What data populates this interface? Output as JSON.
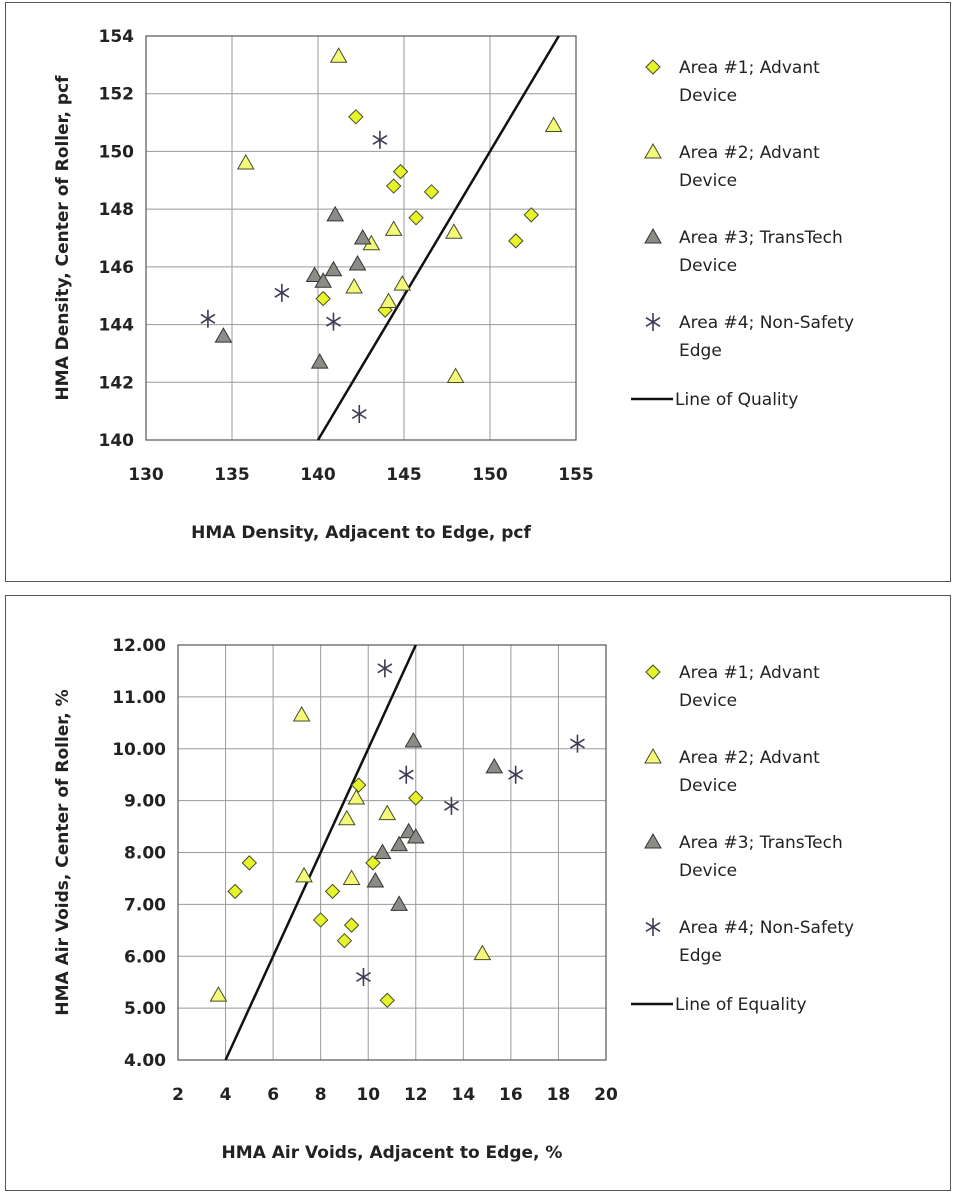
{
  "colors": {
    "area1": "#e6f52a",
    "area2": "#f3fa78",
    "area3": "#8c8c86",
    "area4": "#3c3c54",
    "line": "#111111"
  },
  "chart_data": [
    {
      "type": "scatter",
      "xlabel": "HMA Density, Adjacent to Edge, pcf",
      "ylabel": "HMA Density, Center of Roller, pcf",
      "xlim": [
        130,
        155
      ],
      "ylim": [
        140,
        154
      ],
      "xticks": [
        "130",
        "135",
        "140",
        "145",
        "150",
        "155"
      ],
      "yticks": [
        "140",
        "142",
        "144",
        "146",
        "148",
        "150",
        "152",
        "154"
      ],
      "grid": true,
      "legend_position": "right",
      "series": [
        {
          "name": "Area #1; Advant Device",
          "name_lines": [
            "Area #1; Advant",
            "Device"
          ],
          "marker": "diamond",
          "points": [
            [
              142.2,
              151.2
            ],
            [
              144.8,
              149.3
            ],
            [
              144.4,
              148.8
            ],
            [
              146.6,
              148.6
            ],
            [
              145.7,
              147.7
            ],
            [
              152.4,
              147.8
            ],
            [
              151.5,
              146.9
            ],
            [
              140.3,
              144.9
            ],
            [
              143.9,
              144.5
            ]
          ]
        },
        {
          "name": "Area #2; Advant Device",
          "name_lines": [
            "Area #2; Advant",
            "Device"
          ],
          "marker": "triangle",
          "points": [
            [
              141.2,
              153.3
            ],
            [
              135.8,
              149.6
            ],
            [
              153.7,
              150.9
            ],
            [
              144.4,
              147.3
            ],
            [
              147.9,
              147.2
            ],
            [
              143.1,
              146.8
            ],
            [
              142.1,
              145.3
            ],
            [
              144.9,
              145.4
            ],
            [
              144.1,
              144.8
            ],
            [
              148.0,
              142.2
            ]
          ]
        },
        {
          "name": "Area #3; TransTech Device",
          "name_lines": [
            "Area #3; TransTech",
            "Device"
          ],
          "marker": "triangle",
          "points": [
            [
              141.0,
              147.8
            ],
            [
              142.6,
              147.0
            ],
            [
              139.8,
              145.7
            ],
            [
              140.3,
              145.5
            ],
            [
              140.9,
              145.9
            ],
            [
              142.3,
              146.1
            ],
            [
              134.5,
              143.6
            ],
            [
              140.1,
              142.7
            ]
          ]
        },
        {
          "name": "Area #4; Non-Safety Edge",
          "name_lines": [
            "Area #4; Non-Safety",
            "Edge"
          ],
          "marker": "star",
          "points": [
            [
              143.6,
              150.4
            ],
            [
              137.9,
              145.1
            ],
            [
              133.6,
              144.2
            ],
            [
              140.9,
              144.1
            ],
            [
              142.4,
              140.9
            ]
          ]
        }
      ],
      "reference_line": {
        "name": "Line of Quality",
        "points": [
          [
            140,
            140
          ],
          [
            154,
            154
          ]
        ]
      }
    },
    {
      "type": "scatter",
      "xlabel": "HMA Air Voids, Adjacent to Edge, %",
      "ylabel": "HMA Air Voids, Center of Roller, %",
      "xlim": [
        2,
        20
      ],
      "ylim": [
        4,
        12
      ],
      "xticks": [
        "2",
        "4",
        "6",
        "8",
        "10",
        "12",
        "14",
        "16",
        "18",
        "20"
      ],
      "yticks": [
        "4.00",
        "5.00",
        "6.00",
        "7.00",
        "8.00",
        "9.00",
        "10.00",
        "11.00",
        "12.00"
      ],
      "grid": true,
      "legend_position": "right",
      "series": [
        {
          "name": "Area #1; Advant Device",
          "name_lines": [
            "Area #1; Advant",
            "Device"
          ],
          "marker": "diamond",
          "points": [
            [
              5.0,
              7.8
            ],
            [
              4.4,
              7.25
            ],
            [
              8.5,
              7.25
            ],
            [
              8.0,
              6.7
            ],
            [
              9.3,
              6.6
            ],
            [
              9.0,
              6.3
            ],
            [
              10.8,
              5.15
            ],
            [
              12.0,
              9.05
            ],
            [
              9.6,
              9.3
            ],
            [
              10.2,
              7.8
            ]
          ]
        },
        {
          "name": "Area #2; Advant Device",
          "name_lines": [
            "Area #2; Advant",
            "Device"
          ],
          "marker": "triangle",
          "points": [
            [
              7.2,
              10.65
            ],
            [
              9.5,
              9.05
            ],
            [
              9.1,
              8.65
            ],
            [
              10.8,
              8.75
            ],
            [
              7.3,
              7.55
            ],
            [
              9.3,
              7.5
            ],
            [
              14.8,
              6.05
            ],
            [
              3.7,
              5.25
            ]
          ]
        },
        {
          "name": "Area #3; TransTech Device",
          "name_lines": [
            "Area #3; TransTech",
            "Device"
          ],
          "marker": "triangle",
          "points": [
            [
              11.9,
              10.15
            ],
            [
              15.3,
              9.65
            ],
            [
              10.6,
              8.0
            ],
            [
              11.3,
              8.15
            ],
            [
              11.7,
              8.4
            ],
            [
              12.0,
              8.3
            ],
            [
              10.3,
              7.45
            ],
            [
              11.3,
              7.0
            ]
          ]
        },
        {
          "name": "Area #4; Non-Safety Edge",
          "name_lines": [
            "Area #4; Non-Safety",
            "Edge"
          ],
          "marker": "star",
          "points": [
            [
              10.7,
              11.55
            ],
            [
              11.6,
              9.5
            ],
            [
              13.5,
              8.9
            ],
            [
              16.2,
              9.5
            ],
            [
              18.8,
              10.1
            ],
            [
              9.8,
              5.6
            ]
          ]
        }
      ],
      "reference_line": {
        "name": "Line of Equality",
        "points": [
          [
            4,
            4
          ],
          [
            12,
            12
          ]
        ]
      }
    }
  ]
}
